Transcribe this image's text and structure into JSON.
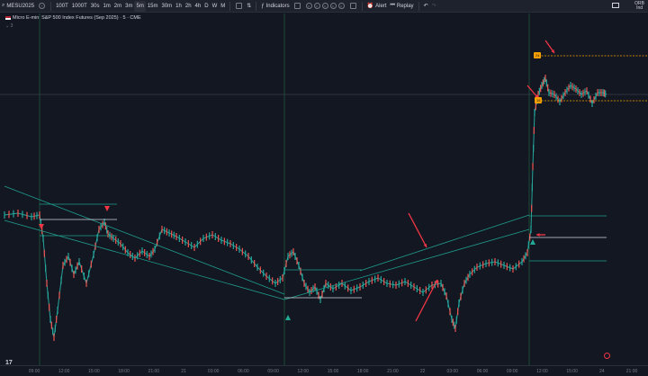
{
  "toolbar": {
    "symbol": "MESU2025",
    "bar_types": [
      "100T",
      "1000T",
      "30s",
      "1m",
      "2m",
      "3m",
      "5m",
      "15m",
      "30m",
      "1h",
      "2h",
      "4h",
      "D",
      "W",
      "M"
    ],
    "selected_interval": "5m",
    "indicators_label": "Indicators",
    "alert_label": "Alert",
    "replay_label": "Replay"
  },
  "top_right": {
    "line1": "ORB",
    "line2": "Ind"
  },
  "legend": {
    "title": "Micro E-mini S&P 500 Index Futures (Sep 2025) · 5 · CME",
    "sub": "⌄ 3"
  },
  "labels": {
    "price_tag_upper": "24",
    "price_tag_lower": "15"
  },
  "chart_data": {
    "type": "line",
    "time_axis_ticks": [
      "09:00",
      "12:00",
      "15:00",
      "18:00",
      "21:00",
      "21",
      "03:00",
      "06:00",
      "09:00",
      "12:00",
      "15:00",
      "18:00",
      "21:00",
      "22",
      "03:00",
      "06:00",
      "09:00",
      "12:00",
      "15:00",
      "24",
      "21:00"
    ],
    "series_color_up": "#26a69a",
    "series_color_down": "#ef5350",
    "channel_color": "#1f9e8e",
    "orb_line_color": "#d1d4dc",
    "orange_line_color": "#f59f00",
    "arrow_color": "#f23645",
    "markers": [
      {
        "kind": "sell-triangle",
        "color": "#f23645"
      },
      {
        "kind": "sell-triangle",
        "color": "#f23645"
      },
      {
        "kind": "buy-triangle",
        "color": "#22ab94"
      },
      {
        "kind": "buy-triangle",
        "color": "#22ab94"
      }
    ]
  }
}
